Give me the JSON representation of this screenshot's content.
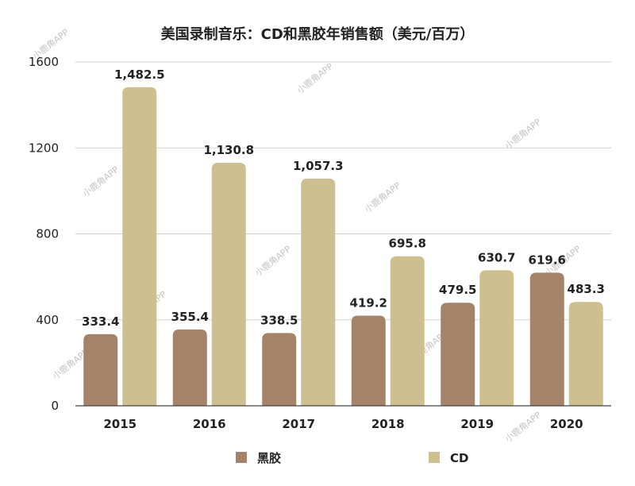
{
  "colors": {
    "vinyl": "#a5826a",
    "cd": "#cdbf8f"
  },
  "watermark": "小鹿角APP",
  "chart_data": {
    "type": "bar",
    "title": "美国录制音乐：CD和黑胶年销售额（美元/百万）",
    "xlabel": "",
    "ylabel": "",
    "categories": [
      "2015",
      "2016",
      "2017",
      "2018",
      "2019",
      "2020"
    ],
    "series": [
      {
        "name": "黑胶",
        "values": [
          333.4,
          355.4,
          338.5,
          419.2,
          479.5,
          619.6
        ],
        "labels": [
          "333.4",
          "355.4",
          "338.5",
          "419.2",
          "479.5",
          "619.6"
        ]
      },
      {
        "name": "CD",
        "values": [
          1482.5,
          1130.8,
          1057.3,
          695.8,
          630.7,
          483.3
        ],
        "labels": [
          "1,482.5",
          "1,130.8",
          "1,057.3",
          "695.8",
          "630.7",
          "483.3"
        ]
      }
    ],
    "ylim": [
      0,
      1600
    ],
    "yticks": [
      0,
      400,
      800,
      1200,
      1600
    ],
    "grid": true,
    "legend": "bottom"
  }
}
